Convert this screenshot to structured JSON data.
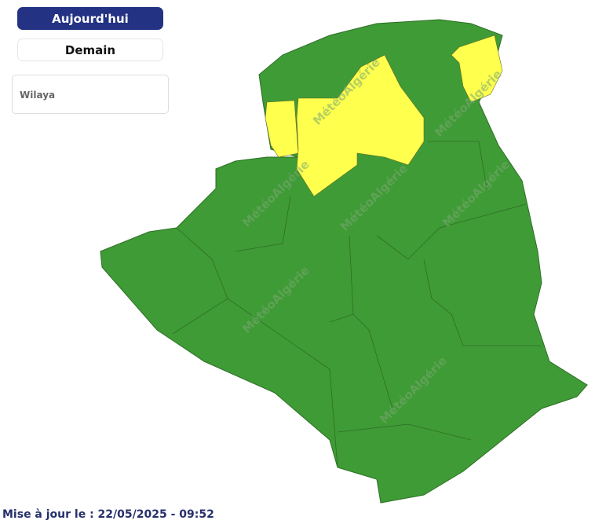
{
  "buttons": {
    "today": "Aujourd'hui",
    "tomorrow": "Demain"
  },
  "wilaya_select": {
    "placeholder": "Wilaya"
  },
  "map": {
    "watermark": "MétéoAlgérie",
    "colors": {
      "no_alert": "#3f9b35",
      "alert_yellow": "#ffff4d",
      "accent": "#233283"
    }
  },
  "footer": {
    "updated": "Mise à jour le : 22/05/2025 - 09:52"
  }
}
